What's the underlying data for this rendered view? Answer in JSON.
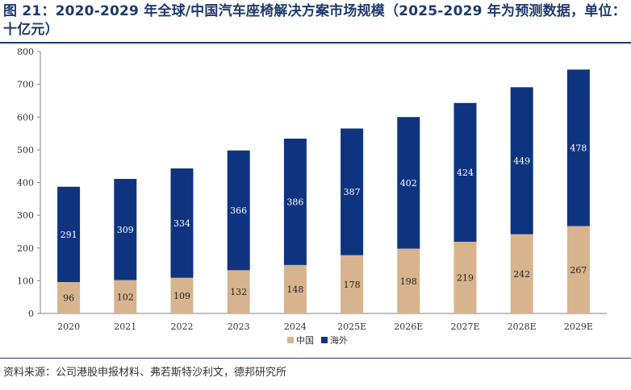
{
  "title": "图 21：2020-2029 年全球/中国汽车座椅解决方案市场规模（2025-2029 年为预测数据，单位：十亿元）",
  "source": "资料来源：公司港股申报材料、弗若斯特沙利文，德邦研究所",
  "colors": {
    "china": "#d7b48e",
    "overseas": "#0e3480",
    "title": "#1f3a6e"
  },
  "chart_data": {
    "type": "bar",
    "stacked": true,
    "categories": [
      "2020",
      "2021",
      "2022",
      "2023",
      "2024",
      "2025E",
      "2026E",
      "2027E",
      "2028E",
      "2029E"
    ],
    "series": [
      {
        "name": "中国",
        "values": [
          96,
          102,
          109,
          132,
          148,
          178,
          198,
          219,
          242,
          267
        ]
      },
      {
        "name": "海外",
        "values": [
          291,
          309,
          334,
          366,
          386,
          387,
          402,
          424,
          449,
          478
        ]
      }
    ],
    "ylim": [
      0,
      800
    ],
    "yticks": [
      0,
      100,
      200,
      300,
      400,
      500,
      600,
      700,
      800
    ],
    "legend_position": "bottom",
    "grid": false
  }
}
